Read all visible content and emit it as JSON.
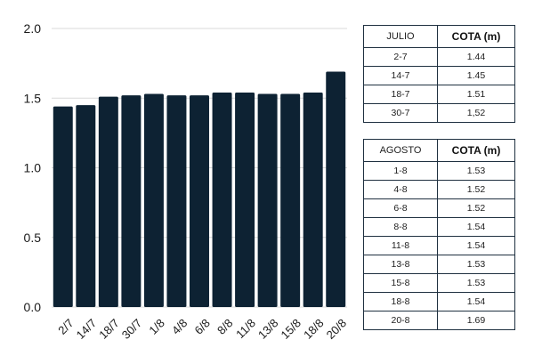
{
  "colors": {
    "bar": "#0d2233",
    "grid": "#d9d9d9",
    "text": "#1a1a1a",
    "table_border": "#1f3040"
  },
  "chart_data": {
    "type": "bar",
    "categories": [
      "2/7",
      "14/7",
      "18/7",
      "30/7",
      "1/8",
      "4/8",
      "6/8",
      "8/8",
      "11/8",
      "13/8",
      "15/8",
      "18/8",
      "20/8"
    ],
    "values": [
      1.44,
      1.45,
      1.51,
      1.52,
      1.53,
      1.52,
      1.52,
      1.54,
      1.54,
      1.53,
      1.53,
      1.54,
      1.69
    ],
    "yticks": [
      "0.0",
      "0.5",
      "1.0",
      "1.5",
      "2.0"
    ],
    "ylim": [
      0,
      2.0
    ],
    "grid": true,
    "title": "",
    "xlabel": "",
    "ylabel": ""
  },
  "tables": {
    "julio": {
      "headers": [
        "JULIO",
        "COTA (m)"
      ],
      "rows": [
        [
          "2-7",
          "1.44"
        ],
        [
          "14-7",
          "1.45"
        ],
        [
          "18-7",
          "1.51"
        ],
        [
          "30-7",
          "1,52"
        ]
      ]
    },
    "agosto": {
      "headers": [
        "AGOSTO",
        "COTA (m)"
      ],
      "rows": [
        [
          "1-8",
          "1.53"
        ],
        [
          "4-8",
          "1.52"
        ],
        [
          "6-8",
          "1.52"
        ],
        [
          "8-8",
          "1.54"
        ],
        [
          "11-8",
          "1.54"
        ],
        [
          "13-8",
          "1.53"
        ],
        [
          "15-8",
          "1.53"
        ],
        [
          "18-8",
          "1.54"
        ],
        [
          "20-8",
          "1.69"
        ]
      ]
    }
  }
}
